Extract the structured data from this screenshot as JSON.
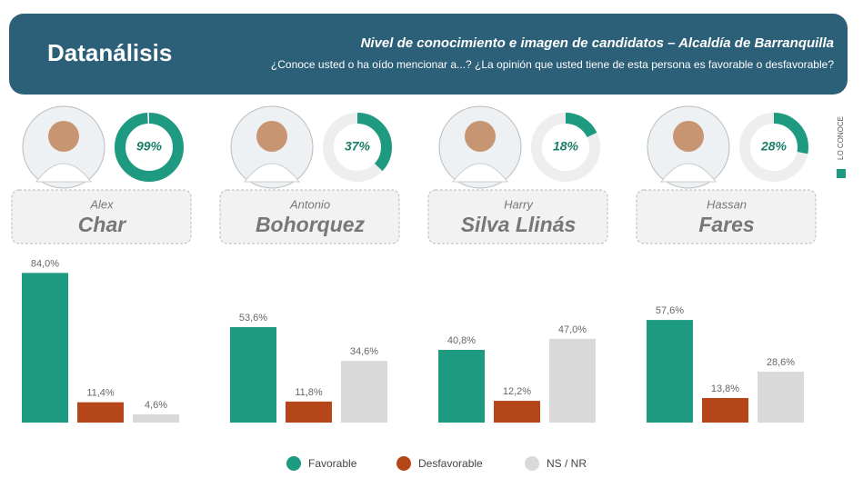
{
  "header": {
    "brand": "Datanálisis",
    "title": "Nivel de conocimiento e imagen de candidatos – Alcaldía de Barranquilla",
    "subtitle": "¿Conoce usted o ha oído mencionar a...? ¿La opinión que usted tiene de esta persona es favorable o desfavorable?"
  },
  "side_label": {
    "text": "LO CONOCE",
    "color": "#1e9a80"
  },
  "legend": {
    "categories": [
      "Favorable",
      "Desfavorable",
      "NS / NR"
    ],
    "colors": [
      "#1e9a80",
      "#b5461a",
      "#d9d9d9"
    ]
  },
  "chart_data": [
    {
      "type": "bar",
      "first_name": "Alex",
      "last_name": "Char",
      "awareness": 99,
      "awareness_label": "99%",
      "values": [
        84.0,
        11.4,
        4.6
      ],
      "value_labels": [
        "84,0%",
        "11,4%",
        "4,6%"
      ],
      "ylim": [
        0,
        100
      ]
    },
    {
      "type": "bar",
      "first_name": "Antonio",
      "last_name": "Bohorquez",
      "awareness": 37,
      "awareness_label": "37%",
      "values": [
        53.6,
        11.8,
        34.6
      ],
      "value_labels": [
        "53,6%",
        "11,8%",
        "34,6%"
      ],
      "ylim": [
        0,
        100
      ]
    },
    {
      "type": "bar",
      "first_name": "Harry",
      "last_name": "Silva Llinás",
      "awareness": 18,
      "awareness_label": "18%",
      "values": [
        40.8,
        12.2,
        47.0
      ],
      "value_labels": [
        "40,8%",
        "12,2%",
        "47,0%"
      ],
      "ylim": [
        0,
        100
      ]
    },
    {
      "type": "bar",
      "first_name": "Hassan",
      "last_name": "Fares",
      "awareness": 28,
      "awareness_label": "28%",
      "values": [
        57.6,
        13.8,
        28.6
      ],
      "value_labels": [
        "57,6%",
        "13,8%",
        "28,6%"
      ],
      "ylim": [
        0,
        100
      ]
    }
  ]
}
